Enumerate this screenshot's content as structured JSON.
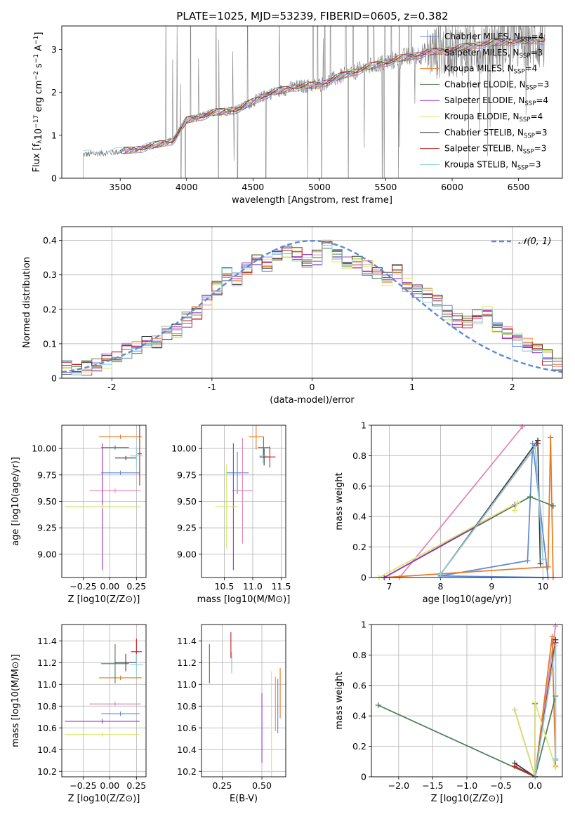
{
  "title": "PLATE=1025, MJD=53239, FIBERID=0605, z=0.382",
  "colors": {
    "Chabrier MILES": "#5b8ad8",
    "Salpeter MILES": "#e283b4",
    "Kroupa MILES": "#e8781e",
    "Chabrier ELODIE": "#4f7c57",
    "Salpeter ELODIE": "#a12fbf",
    "Kroupa ELODIE": "#d6e86a",
    "Chabrier STELIB": "#3a3a3a",
    "Salpeter STELIB": "#c0201e",
    "Kroupa STELIB": "#8fd0dc",
    "data": "#7f7f7f",
    "normal": "#5b8ad8"
  },
  "chart_data": [
    {
      "id": "spectrum",
      "type": "line",
      "xlabel": "wavelength [Angstrom, rest frame]",
      "ylabel_parts": [
        "Flux [f",
        "λ",
        "10",
        "−17",
        " erg cm",
        "−2",
        " s",
        "−1",
        " A",
        "−1",
        "]"
      ],
      "xlim": [
        3060,
        6830
      ],
      "ylim": [
        0,
        3.55
      ],
      "xticks": [
        3500,
        4000,
        4500,
        5000,
        5500,
        6000,
        6500
      ],
      "yticks": [
        0,
        1,
        2,
        3
      ],
      "grid": false,
      "legend_position": "upper right",
      "series": [
        {
          "name": "Chabrier MILES",
          "nssp": "4"
        },
        {
          "name": "Salpeter MILES",
          "nssp": "3"
        },
        {
          "name": "Kroupa MILES",
          "nssp": "4"
        },
        {
          "name": "Chabrier ELODIE",
          "nssp": "3"
        },
        {
          "name": "Salpeter ELODIE",
          "nssp": "4"
        },
        {
          "name": "Kroupa ELODIE",
          "nssp": "4"
        },
        {
          "name": "Chabrier STELIB",
          "nssp": "3"
        },
        {
          "name": "Salpeter STELIB",
          "nssp": "3"
        },
        {
          "name": "Kroupa STELIB",
          "nssp": "3"
        }
      ],
      "continuum": [
        [
          3220,
          0.55
        ],
        [
          3500,
          0.62
        ],
        [
          3700,
          0.72
        ],
        [
          3900,
          0.88
        ],
        [
          4000,
          1.35
        ],
        [
          4200,
          1.52
        ],
        [
          4400,
          1.62
        ],
        [
          4600,
          1.95
        ],
        [
          4800,
          2.12
        ],
        [
          5000,
          2.18
        ],
        [
          5200,
          2.42
        ],
        [
          5400,
          2.62
        ],
        [
          5600,
          2.78
        ],
        [
          5800,
          2.92
        ],
        [
          6000,
          3.0
        ],
        [
          6200,
          3.12
        ],
        [
          6400,
          3.18
        ],
        [
          6700,
          3.22
        ]
      ]
    },
    {
      "id": "residuals",
      "type": "step",
      "xlabel": "(data-model)/error",
      "ylabel": "Normed distribution",
      "xlim": [
        -2.5,
        2.5
      ],
      "ylim": [
        0,
        0.44
      ],
      "xticks": [
        -2,
        -1,
        0,
        1,
        2
      ],
      "yticks": [
        0.0,
        0.1,
        0.2,
        0.3,
        0.4
      ],
      "grid": true,
      "legend_position": "upper right",
      "reference": {
        "label": "𝒩(0, 1)",
        "mean": 0,
        "sigma": 1
      },
      "bin_edges": [
        -2.5,
        -2.4,
        -2.3,
        -2.2,
        -2.1,
        -2.0,
        -1.9,
        -1.8,
        -1.7,
        -1.6,
        -1.5,
        -1.4,
        -1.3,
        -1.2,
        -1.1,
        -1.0,
        -0.9,
        -0.8,
        -0.7,
        -0.6,
        -0.5,
        -0.4,
        -0.3,
        -0.2,
        -0.1,
        0.0,
        0.1,
        0.2,
        0.3,
        0.4,
        0.5,
        0.6,
        0.7,
        0.8,
        0.9,
        1.0,
        1.1,
        1.2,
        1.3,
        1.4,
        1.5,
        1.6,
        1.7,
        1.8,
        1.9,
        2.0,
        2.1,
        2.2,
        2.3,
        2.4,
        2.5
      ],
      "base_hist": [
        0.03,
        0.025,
        0.03,
        0.035,
        0.05,
        0.07,
        0.08,
        0.09,
        0.1,
        0.11,
        0.13,
        0.14,
        0.17,
        0.19,
        0.22,
        0.26,
        0.3,
        0.29,
        0.32,
        0.34,
        0.33,
        0.36,
        0.37,
        0.36,
        0.34,
        0.35,
        0.38,
        0.36,
        0.33,
        0.34,
        0.32,
        0.3,
        0.29,
        0.31,
        0.27,
        0.25,
        0.24,
        0.22,
        0.19,
        0.17,
        0.16,
        0.18,
        0.2,
        0.15,
        0.13,
        0.11,
        0.1,
        0.08,
        0.06,
        0.04
      ]
    },
    {
      "id": "age-vs-Z",
      "type": "scatter",
      "xlabel": "Z [log10(Z/Z⊙)]",
      "ylabel": "age  [log10(age/yr)]",
      "xlim": [
        -0.45,
        0.34
      ],
      "ylim": [
        8.78,
        10.22
      ],
      "xticks": [
        -0.25,
        0.0,
        0.25
      ],
      "xticklabels": [
        "−0.25",
        "0.00",
        "0.25"
      ],
      "yticks": [
        9.0,
        9.25,
        9.5,
        9.75,
        10.0
      ],
      "yticklabels": [
        "9.00",
        "9.25",
        "9.50",
        "9.75",
        "10.00"
      ],
      "grid": true,
      "points": [
        {
          "model": "Chabrier MILES",
          "x": 0.1,
          "xerr": 0.18,
          "y": 9.77,
          "yerr": 0.02
        },
        {
          "model": "Salpeter MILES",
          "x": 0.05,
          "xerr": 0.24,
          "y": 9.6,
          "yerr": 0.02
        },
        {
          "model": "Kroupa MILES",
          "x": 0.1,
          "xerr": 0.2,
          "y": 10.11,
          "yerr": 0.02
        },
        {
          "model": "Chabrier ELODIE",
          "x": 0.05,
          "xerr": 0.13,
          "y": 10.01,
          "yerr": 0.02
        },
        {
          "model": "Salpeter ELODIE",
          "x": -0.07,
          "xerr": 0.35,
          "y": 9.45,
          "yerr": 0.6
        },
        {
          "model": "Kroupa ELODIE",
          "x": -0.07,
          "xerr": 0.35,
          "y": 9.45,
          "yerr": 0.02
        },
        {
          "model": "Chabrier STELIB",
          "x": 0.15,
          "xerr": 0.1,
          "y": 9.91,
          "yerr": 0.02
        },
        {
          "model": "Salpeter STELIB",
          "x": 0.28,
          "xerr": 0.02,
          "y": 9.95,
          "yerr": 0.3
        },
        {
          "model": "Kroupa STELIB",
          "x": 0.25,
          "xerr": 0.06,
          "y": 9.93,
          "yerr": 0.1
        }
      ]
    },
    {
      "id": "age-vs-mass",
      "type": "scatter",
      "xlabel": "mass [log10(M/M⊙)]",
      "ylabel": "",
      "xlim": [
        10.1,
        11.58
      ],
      "ylim": [
        8.78,
        10.22
      ],
      "xticks": [
        10.5,
        11.0,
        11.5
      ],
      "xticklabels": [
        "10.5",
        "11.0",
        "11.5"
      ],
      "yticks": [
        9.0,
        9.25,
        9.5,
        9.75,
        10.0
      ],
      "yticklabels": [
        "9.00",
        "9.25",
        "9.50",
        "9.75",
        "10.00"
      ],
      "grid": true,
      "points": [
        {
          "model": "Chabrier MILES",
          "x": 10.73,
          "xerr": 0.2,
          "y": 9.77,
          "yerr": 0.2
        },
        {
          "model": "Salpeter MILES",
          "x": 10.82,
          "xerr": 0.18,
          "y": 9.6,
          "yerr": 0.5
        },
        {
          "model": "Kroupa MILES",
          "x": 11.06,
          "xerr": 0.13,
          "y": 10.11,
          "yerr": 0.12
        },
        {
          "model": "Chabrier ELODIE",
          "x": 11.19,
          "xerr": 0.1,
          "y": 10.01,
          "yerr": 0.1
        },
        {
          "model": "Salpeter ELODIE",
          "x": 10.66,
          "xerr": 0.05,
          "y": 9.45,
          "yerr": 0.6
        },
        {
          "model": "Kroupa ELODIE",
          "x": 10.54,
          "xerr": 0.2,
          "y": 9.45,
          "yerr": 0.4
        },
        {
          "model": "Chabrier STELIB",
          "x": 11.2,
          "xerr": 0.08,
          "y": 9.92,
          "yerr": 0.08
        },
        {
          "model": "Salpeter STELIB",
          "x": 11.3,
          "xerr": 0.1,
          "y": 9.92,
          "yerr": 0.1
        },
        {
          "model": "Kroupa STELIB",
          "x": 11.18,
          "xerr": 0.06,
          "y": 9.93,
          "yerr": 0.07
        }
      ]
    },
    {
      "id": "sfh-age",
      "type": "line",
      "xlabel": "age  [log10(age/yr)]",
      "ylabel": "mass weight",
      "xlim": [
        6.65,
        10.38
      ],
      "ylim": [
        0,
        1.0
      ],
      "xticks": [
        7,
        8,
        9,
        10
      ],
      "yticks": [
        0.0,
        0.2,
        0.4,
        0.6,
        0.8,
        1.0
      ],
      "grid": true,
      "series": [
        {
          "model": "Chabrier MILES",
          "points": [
            [
              8.0,
              0.01
            ],
            [
              9.7,
              0.11
            ],
            [
              9.8,
              0.88
            ],
            [
              10.1,
              0.0
            ],
            [
              8.0,
              0.01
            ]
          ]
        },
        {
          "model": "Salpeter MILES",
          "points": [
            [
              7.2,
              0.0
            ],
            [
              9.6,
              0.99
            ]
          ]
        },
        {
          "model": "Kroupa MILES",
          "points": [
            [
              6.9,
              0.0
            ],
            [
              10.1,
              0.07
            ],
            [
              10.15,
              0.92
            ],
            [
              10.2,
              0.0
            ]
          ]
        },
        {
          "model": "Chabrier ELODIE",
          "points": [
            [
              6.9,
              0.0
            ],
            [
              9.75,
              0.53
            ],
            [
              10.2,
              0.47
            ]
          ]
        },
        {
          "model": "Salpeter ELODIE",
          "points": [
            [
              6.9,
              0.0
            ],
            [
              9.45,
              0.48
            ]
          ]
        },
        {
          "model": "Kroupa ELODIE",
          "points": [
            [
              6.8,
              0.0
            ],
            [
              9.5,
              0.49
            ],
            [
              9.45,
              0.44
            ]
          ]
        },
        {
          "model": "Chabrier STELIB",
          "points": [
            [
              8.0,
              0.02
            ],
            [
              9.9,
              0.9
            ],
            [
              9.95,
              0.09
            ]
          ]
        },
        {
          "model": "Salpeter STELIB",
          "points": [
            [
              8.0,
              0.02
            ],
            [
              9.9,
              0.88
            ]
          ]
        },
        {
          "model": "Kroupa STELIB",
          "points": [
            [
              8.0,
              0.02
            ],
            [
              9.85,
              0.86
            ],
            [
              10.0,
              0.12
            ]
          ]
        }
      ]
    },
    {
      "id": "mass-vs-Z",
      "type": "scatter",
      "xlabel": "Z [log10(Z/Z⊙)]",
      "ylabel": "mass [log10(M/M⊙)]",
      "xlim": [
        -0.45,
        0.34
      ],
      "ylim": [
        10.15,
        11.55
      ],
      "xticks": [
        -0.25,
        0.0,
        0.25
      ],
      "xticklabels": [
        "−0.25",
        "0.00",
        "0.25"
      ],
      "yticks": [
        10.2,
        10.4,
        10.6,
        10.8,
        11.0,
        11.2,
        11.4
      ],
      "yticklabels": [
        "10.2",
        "10.4",
        "10.6",
        "10.8",
        "11.0",
        "11.2",
        "11.4"
      ],
      "grid": true,
      "points": [
        {
          "model": "Chabrier MILES",
          "x": 0.1,
          "xerr": 0.18,
          "y": 10.73,
          "yerr": 0.02
        },
        {
          "model": "Salpeter MILES",
          "x": 0.05,
          "xerr": 0.24,
          "y": 10.82,
          "yerr": 0.02
        },
        {
          "model": "Kroupa MILES",
          "x": 0.1,
          "xerr": 0.2,
          "y": 11.06,
          "yerr": 0.02
        },
        {
          "model": "Chabrier ELODIE",
          "x": 0.05,
          "xerr": 0.13,
          "y": 11.19,
          "yerr": 0.18
        },
        {
          "model": "Salpeter ELODIE",
          "x": -0.07,
          "xerr": 0.35,
          "y": 10.66,
          "yerr": 0.02
        },
        {
          "model": "Kroupa ELODIE",
          "x": -0.07,
          "xerr": 0.35,
          "y": 10.54,
          "yerr": 0.02
        },
        {
          "model": "Chabrier STELIB",
          "x": 0.15,
          "xerr": 0.1,
          "y": 11.2,
          "yerr": 0.08
        },
        {
          "model": "Salpeter STELIB",
          "x": 0.25,
          "xerr": 0.05,
          "y": 11.3,
          "yerr": 0.12
        },
        {
          "model": "Kroupa STELIB",
          "x": 0.25,
          "xerr": 0.06,
          "y": 11.18,
          "yerr": 0.1
        }
      ]
    },
    {
      "id": "mass-vs-ebv",
      "type": "scatter",
      "xlabel": "E(B-V)",
      "ylabel": "",
      "xlim": [
        0.12,
        0.65
      ],
      "ylim": [
        10.15,
        11.55
      ],
      "xticks": [
        0.25,
        0.5
      ],
      "xticklabels": [
        "0.25",
        "0.50"
      ],
      "yticks": [
        10.2,
        10.4,
        10.6,
        10.8,
        11.0,
        11.2,
        11.4
      ],
      "yticklabels": [
        "10.2",
        "10.4",
        "10.6",
        "10.8",
        "11.0",
        "11.2",
        "11.4"
      ],
      "grid": true,
      "points": [
        {
          "model": "Chabrier MILES",
          "x": 0.6,
          "xerr": 0.002,
          "y": 10.8,
          "yerr": 0.25
        },
        {
          "model": "Salpeter MILES",
          "x": 0.585,
          "xerr": 0.002,
          "y": 10.82,
          "yerr": 0.25
        },
        {
          "model": "Kroupa MILES",
          "x": 0.615,
          "xerr": 0.002,
          "y": 10.92,
          "yerr": 0.23
        },
        {
          "model": "Chabrier ELODIE",
          "x": 0.17,
          "xerr": 0.002,
          "y": 11.19,
          "yerr": 0.18
        },
        {
          "model": "Salpeter ELODIE",
          "x": 0.5,
          "xerr": 0.002,
          "y": 10.6,
          "yerr": 0.32
        },
        {
          "model": "Kroupa ELODIE",
          "x": 0.56,
          "xerr": 0.002,
          "y": 10.62,
          "yerr": 0.5
        },
        {
          "model": "Chabrier STELIB",
          "x": 0.31,
          "xerr": 0.002,
          "y": 11.2,
          "yerr": 0.08
        },
        {
          "model": "Salpeter STELIB",
          "x": 0.305,
          "xerr": 0.002,
          "y": 11.36,
          "yerr": 0.12
        },
        {
          "model": "Kroupa STELIB",
          "x": 0.31,
          "xerr": 0.002,
          "y": 11.2,
          "yerr": 0.1
        }
      ]
    },
    {
      "id": "sfh-Z",
      "type": "line",
      "xlabel": "Z [log10(Z/Z⊙)]",
      "ylabel": "mass weight",
      "xlim": [
        -2.4,
        0.4
      ],
      "ylim": [
        0,
        1.0
      ],
      "xticks": [
        -2.0,
        -1.5,
        -1.0,
        -0.5,
        0.0
      ],
      "xticklabels": [
        "−2.0",
        "−1.5",
        "−1.0",
        "−0.5",
        "0.0"
      ],
      "yticks": [
        0.0,
        0.2,
        0.4,
        0.6,
        0.8,
        1.0
      ],
      "grid": true,
      "series": [
        {
          "model": "Chabrier MILES",
          "points": [
            [
              0.0,
              0.0
            ],
            [
              0.3,
              0.88
            ],
            [
              0.3,
              0.11
            ]
          ]
        },
        {
          "model": "Salpeter MILES",
          "points": [
            [
              0.0,
              0.0
            ],
            [
              0.3,
              0.99
            ]
          ]
        },
        {
          "model": "Kroupa MILES",
          "points": [
            [
              0.0,
              0.0
            ],
            [
              0.25,
              0.92
            ],
            [
              0.3,
              0.07
            ]
          ]
        },
        {
          "model": "Chabrier ELODIE",
          "points": [
            [
              -2.3,
              0.47
            ],
            [
              0.0,
              0.0
            ],
            [
              0.3,
              0.53
            ]
          ]
        },
        {
          "model": "Salpeter ELODIE",
          "points": [
            [
              -0.3,
              0.44
            ],
            [
              0.0,
              0.0
            ],
            [
              0.0,
              0.48
            ]
          ]
        },
        {
          "model": "Kroupa ELODIE",
          "points": [
            [
              -0.3,
              0.44
            ],
            [
              0.0,
              0.0
            ],
            [
              0.0,
              0.49
            ],
            [
              0.3,
              0.06
            ]
          ]
        },
        {
          "model": "Chabrier STELIB",
          "points": [
            [
              -0.3,
              0.09
            ],
            [
              0.0,
              0.0
            ],
            [
              0.3,
              0.9
            ]
          ]
        },
        {
          "model": "Salpeter STELIB",
          "points": [
            [
              -0.3,
              0.07
            ],
            [
              0.0,
              0.0
            ],
            [
              0.3,
              0.88
            ]
          ]
        },
        {
          "model": "Kroupa STELIB",
          "points": [
            [
              0.0,
              0.0
            ],
            [
              0.3,
              0.86
            ],
            [
              0.3,
              0.12
            ]
          ]
        }
      ]
    }
  ]
}
